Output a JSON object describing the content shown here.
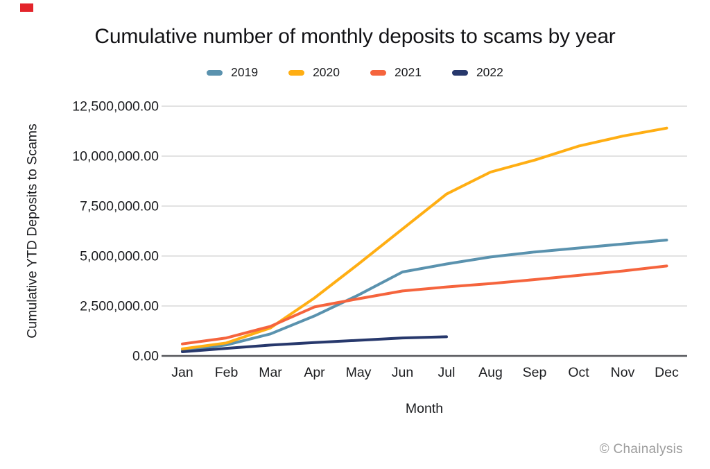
{
  "chart_data": {
    "type": "line",
    "title": "Cumulative number of monthly deposits to scams by year",
    "xlabel": "Month",
    "ylabel": "Cumulative YTD Deposits to Scams",
    "categories": [
      "Jan",
      "Feb",
      "Mar",
      "Apr",
      "May",
      "Jun",
      "Jul",
      "Aug",
      "Sep",
      "Oct",
      "Nov",
      "Dec"
    ],
    "series": [
      {
        "name": "2019",
        "color": "#5A92AE",
        "values": [
          280000,
          550000,
          1100000,
          2000000,
          3050000,
          4200000,
          4600000,
          4950000,
          5200000,
          5400000,
          5600000,
          5800000
        ]
      },
      {
        "name": "2020",
        "color": "#FFAE13",
        "values": [
          350000,
          650000,
          1400000,
          2900000,
          4600000,
          6350000,
          8100000,
          9200000,
          9800000,
          10500000,
          11000000,
          11400000
        ]
      },
      {
        "name": "2021",
        "color": "#F5643D",
        "values": [
          600000,
          900000,
          1480000,
          2450000,
          2860000,
          3250000,
          3450000,
          3620000,
          3820000,
          4030000,
          4250000,
          4500000
        ]
      },
      {
        "name": "2022",
        "color": "#27386C",
        "values": [
          210000,
          380000,
          540000,
          670000,
          780000,
          900000,
          960000
        ]
      }
    ],
    "ylim": [
      0,
      12500000
    ],
    "ytick_step": 2500000,
    "ytick_labels": [
      "0.00",
      "2,500,000.00",
      "5,000,000.00",
      "7,500,000.00",
      "10,000,000.00",
      "12,500,000.00"
    ],
    "grid": true,
    "legend_position": "top"
  },
  "footer": {
    "watermark": "© Chainalysis"
  },
  "colors": {
    "background": "#FFFFFF",
    "grid": "#D9D9D9",
    "axis": "#55565A",
    "text": "#1B1C1F",
    "watermark": "#9C9C9C",
    "marker_red": "#E3242B"
  }
}
